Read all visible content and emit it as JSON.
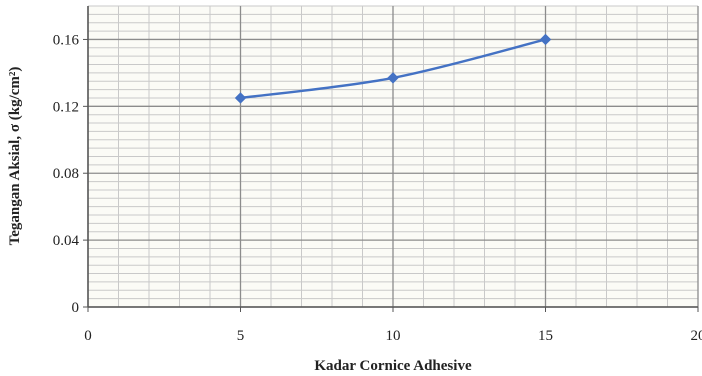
{
  "chart_data": {
    "type": "line",
    "title": "",
    "xlabel": "Kadar Cornice Adhesive",
    "ylabel": "Tegangan Aksial, σ (kg/cm²)",
    "xlim": [
      0,
      20
    ],
    "ylim": [
      0,
      0.18
    ],
    "x_ticks": [
      0,
      5,
      10,
      15,
      20
    ],
    "y_ticks": [
      0,
      0.04,
      0.08,
      0.12,
      0.16
    ],
    "x_tick_labels": [
      "0",
      "5",
      "10",
      "15",
      "20"
    ],
    "y_tick_labels": [
      "0",
      "0.04",
      "0.08",
      "0.12",
      "0.16"
    ],
    "grid": true,
    "legend": "none",
    "series": [
      {
        "x": [
          5,
          10,
          15
        ],
        "y": [
          0.125,
          0.137,
          0.16
        ],
        "color": "#4472c4",
        "marker": "diamond"
      }
    ],
    "colors": {
      "background": "#ffffff",
      "plot_background": "#fbfbf6",
      "major_grid": "#8c8c8c",
      "minor_grid": "#c9c9c9",
      "axis": "#555555",
      "text": "#222222"
    }
  }
}
